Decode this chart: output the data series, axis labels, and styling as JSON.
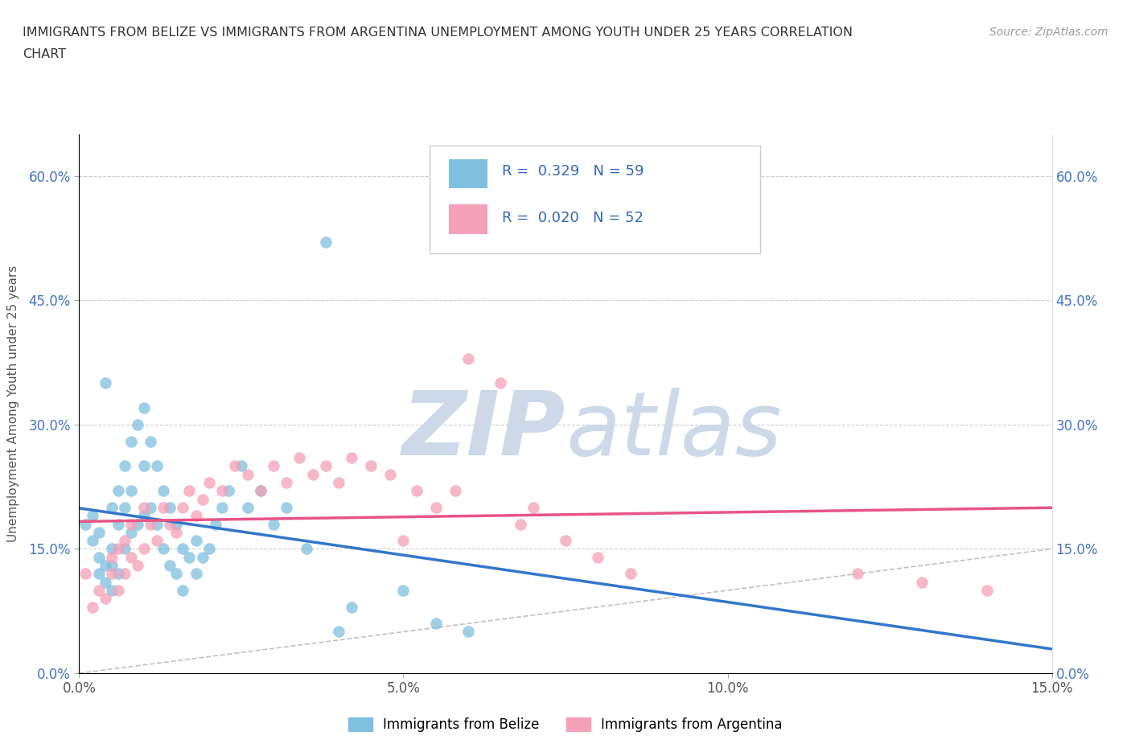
{
  "title_line1": "IMMIGRANTS FROM BELIZE VS IMMIGRANTS FROM ARGENTINA UNEMPLOYMENT AMONG YOUTH UNDER 25 YEARS CORRELATION",
  "title_line2": "CHART",
  "source": "Source: ZipAtlas.com",
  "ylabel": "Unemployment Among Youth under 25 years",
  "xlim": [
    0.0,
    0.15
  ],
  "ylim": [
    0.0,
    0.65
  ],
  "yticks": [
    0.0,
    0.15,
    0.3,
    0.45,
    0.6
  ],
  "ytick_labels": [
    "0.0%",
    "15.0%",
    "30.0%",
    "45.0%",
    "60.0%"
  ],
  "xticks": [
    0.0,
    0.05,
    0.1,
    0.15
  ],
  "xtick_labels": [
    "0.0%",
    "5.0%",
    "10.0%",
    "15.0%"
  ],
  "belize_R": 0.329,
  "belize_N": 59,
  "argentina_R": 0.02,
  "argentina_N": 52,
  "belize_color": "#7fbfdf",
  "argentina_color": "#f4a0b8",
  "belize_line_color": "#3377cc",
  "argentina_line_color": "#e85585",
  "diagonal_color": "#bbbbbb",
  "watermark_color": "#cdd8e8",
  "belize_x": [
    0.001,
    0.002,
    0.002,
    0.003,
    0.003,
    0.003,
    0.004,
    0.004,
    0.004,
    0.005,
    0.005,
    0.005,
    0.005,
    0.006,
    0.006,
    0.006,
    0.007,
    0.007,
    0.007,
    0.008,
    0.008,
    0.008,
    0.009,
    0.009,
    0.01,
    0.01,
    0.01,
    0.011,
    0.011,
    0.012,
    0.012,
    0.013,
    0.013,
    0.014,
    0.014,
    0.015,
    0.015,
    0.016,
    0.016,
    0.017,
    0.018,
    0.018,
    0.019,
    0.02,
    0.021,
    0.022,
    0.023,
    0.025,
    0.026,
    0.028,
    0.03,
    0.032,
    0.035,
    0.038,
    0.04,
    0.042,
    0.05,
    0.055,
    0.06
  ],
  "belize_y": [
    0.18,
    0.19,
    0.16,
    0.17,
    0.14,
    0.12,
    0.35,
    0.13,
    0.11,
    0.2,
    0.15,
    0.13,
    0.1,
    0.22,
    0.18,
    0.12,
    0.25,
    0.2,
    0.15,
    0.28,
    0.22,
    0.17,
    0.3,
    0.18,
    0.32,
    0.25,
    0.19,
    0.28,
    0.2,
    0.25,
    0.18,
    0.22,
    0.15,
    0.2,
    0.13,
    0.18,
    0.12,
    0.15,
    0.1,
    0.14,
    0.16,
    0.12,
    0.14,
    0.15,
    0.18,
    0.2,
    0.22,
    0.25,
    0.2,
    0.22,
    0.18,
    0.2,
    0.15,
    0.52,
    0.05,
    0.08,
    0.1,
    0.06,
    0.05
  ],
  "argentina_x": [
    0.001,
    0.002,
    0.003,
    0.004,
    0.005,
    0.005,
    0.006,
    0.006,
    0.007,
    0.007,
    0.008,
    0.008,
    0.009,
    0.01,
    0.01,
    0.011,
    0.012,
    0.013,
    0.014,
    0.015,
    0.016,
    0.017,
    0.018,
    0.019,
    0.02,
    0.022,
    0.024,
    0.026,
    0.028,
    0.03,
    0.032,
    0.034,
    0.036,
    0.038,
    0.04,
    0.042,
    0.045,
    0.048,
    0.05,
    0.052,
    0.055,
    0.058,
    0.06,
    0.065,
    0.068,
    0.07,
    0.075,
    0.08,
    0.085,
    0.12,
    0.13,
    0.14
  ],
  "argentina_y": [
    0.12,
    0.08,
    0.1,
    0.09,
    0.14,
    0.12,
    0.15,
    0.1,
    0.16,
    0.12,
    0.18,
    0.14,
    0.13,
    0.2,
    0.15,
    0.18,
    0.16,
    0.2,
    0.18,
    0.17,
    0.2,
    0.22,
    0.19,
    0.21,
    0.23,
    0.22,
    0.25,
    0.24,
    0.22,
    0.25,
    0.23,
    0.26,
    0.24,
    0.25,
    0.23,
    0.26,
    0.25,
    0.24,
    0.16,
    0.22,
    0.2,
    0.22,
    0.38,
    0.35,
    0.18,
    0.2,
    0.16,
    0.14,
    0.12,
    0.12,
    0.11,
    0.1
  ]
}
